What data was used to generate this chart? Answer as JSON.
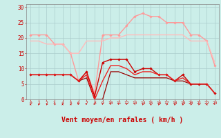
{
  "background_color": "#cbeee9",
  "grid_color": "#aacccc",
  "xlabel": "Vent moyen/en rafales ( km/h )",
  "xlabel_color": "#cc0000",
  "ylim": [
    0,
    31
  ],
  "yticks": [
    0,
    5,
    10,
    15,
    20,
    25,
    30
  ],
  "x": [
    0,
    1,
    2,
    3,
    4,
    5,
    6,
    7,
    8,
    9,
    10,
    11,
    12,
    13,
    14,
    15,
    16,
    17,
    18,
    19,
    20,
    21,
    22,
    23
  ],
  "series": [
    {
      "color": "#ff9999",
      "lw": 1.0,
      "marker": "D",
      "ms": 1.8,
      "values": [
        21,
        21,
        21,
        18,
        18,
        15,
        6,
        9,
        2,
        21,
        21,
        21,
        24,
        27,
        28,
        27,
        27,
        25,
        25,
        25,
        21,
        21,
        19,
        11
      ]
    },
    {
      "color": "#ffbbbb",
      "lw": 1.0,
      "marker": null,
      "ms": 0,
      "values": [
        19,
        19,
        18,
        18,
        18,
        15,
        15,
        19,
        19,
        19,
        20,
        20,
        21,
        21,
        21,
        21,
        21,
        21,
        21,
        21,
        19,
        19,
        19,
        12
      ]
    },
    {
      "color": "#cc0000",
      "lw": 1.0,
      "marker": "D",
      "ms": 1.8,
      "values": [
        8,
        8,
        8,
        8,
        8,
        8,
        6,
        9,
        1,
        12,
        13,
        13,
        13,
        9,
        10,
        10,
        8,
        8,
        6,
        8,
        5,
        5,
        5,
        2
      ]
    },
    {
      "color": "#990000",
      "lw": 0.9,
      "marker": null,
      "ms": 0,
      "values": [
        8,
        8,
        8,
        8,
        8,
        8,
        6,
        7,
        0,
        0,
        9,
        9,
        8,
        7,
        7,
        7,
        7,
        7,
        6,
        6,
        5,
        5,
        5,
        2
      ]
    },
    {
      "color": "#ee2222",
      "lw": 1.0,
      "marker": null,
      "ms": 0,
      "values": [
        8,
        8,
        8,
        8,
        8,
        8,
        6,
        8,
        0,
        6,
        11,
        11,
        10,
        8,
        9,
        9,
        8,
        8,
        6,
        7,
        5,
        5,
        5,
        2
      ]
    }
  ],
  "arrow_angles": [
    180,
    190,
    195,
    200,
    180,
    185,
    270,
    270,
    300,
    240,
    230,
    240,
    225,
    210,
    195,
    185,
    190,
    195,
    185,
    185,
    195,
    195,
    180,
    270
  ]
}
